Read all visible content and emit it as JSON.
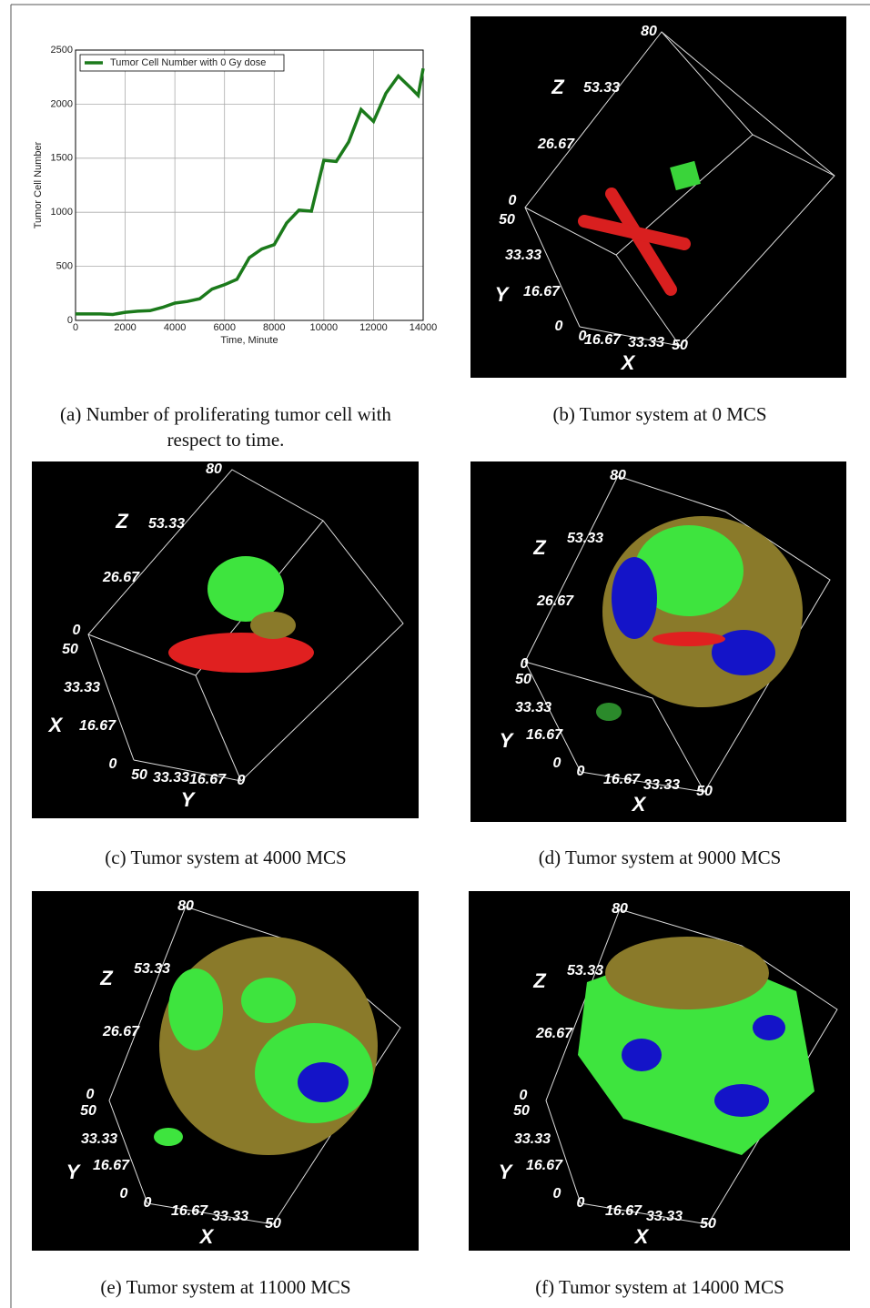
{
  "chart_data": {
    "type": "line",
    "xlabel": "Time, Minute",
    "ylabel": "Tumor Cell Number",
    "x": [
      0,
      500,
      1000,
      1500,
      2000,
      2500,
      3000,
      3500,
      4000,
      4500,
      5000,
      5500,
      6000,
      6500,
      7000,
      7500,
      8000,
      8500,
      9000,
      9500,
      10000,
      10500,
      11000,
      11500,
      12000,
      12500,
      13000,
      13500,
      13800,
      14000
    ],
    "series": [
      {
        "name": "Tumor Cell Number with 0 Gy dose",
        "color": "#1b7a1b",
        "values": [
          60,
          60,
          60,
          55,
          75,
          85,
          90,
          120,
          160,
          175,
          200,
          290,
          330,
          380,
          580,
          660,
          700,
          900,
          1020,
          1010,
          1480,
          1470,
          1650,
          1950,
          1840,
          2100,
          2260,
          2150,
          2080,
          2330
        ]
      }
    ],
    "xlim": [
      0,
      14000
    ],
    "xticks": [
      0,
      2000,
      4000,
      6000,
      8000,
      10000,
      12000,
      14000
    ],
    "ylim": [
      0,
      2500
    ],
    "yticks": [
      0,
      500,
      1000,
      1500,
      2000,
      2500
    ],
    "grid": true,
    "legend": "upper left"
  },
  "captions": [
    "(a) Number of proliferating tumor cell with respect to time.",
    "(b) Tumor system at 0 MCS",
    "(c) Tumor system at 4000 MCS",
    "(d) Tumor system at 9000 MCS",
    "(e) Tumor system at 11000 MCS",
    "(f) Tumor system at 14000 MCS"
  ],
  "panels": [
    {
      "labels": [
        "80",
        "Z",
        "53.33",
        "26.67",
        "0",
        "50",
        "33.33",
        "Y",
        "16.67",
        "0",
        "0",
        "16.67",
        "33.33",
        "50",
        "X"
      ]
    },
    {
      "labels": [
        "80",
        "Z",
        "53.33",
        "26.67",
        "0",
        "50",
        "33.33",
        "X",
        "16.67",
        "0",
        "50",
        "33.33",
        "16.67",
        "0",
        "Y"
      ]
    },
    {
      "labels": [
        "80",
        "Z",
        "53.33",
        "26.67",
        "0",
        "50",
        "33.33",
        "Y",
        "16.67",
        "0",
        "0",
        "16.67",
        "33.33",
        "50",
        "X"
      ]
    },
    {
      "labels": [
        "80",
        "Z",
        "53.33",
        "26.67",
        "0",
        "50",
        "33.33",
        "Y",
        "16.67",
        "0",
        "0",
        "16.67",
        "33.33",
        "50",
        "X"
      ]
    },
    {
      "labels": [
        "80",
        "Z",
        "53.33",
        "26.67",
        "0",
        "50",
        "33.33",
        "Y",
        "16.67",
        "0",
        "0",
        "16.67",
        "33.33",
        "50",
        "X"
      ]
    }
  ]
}
